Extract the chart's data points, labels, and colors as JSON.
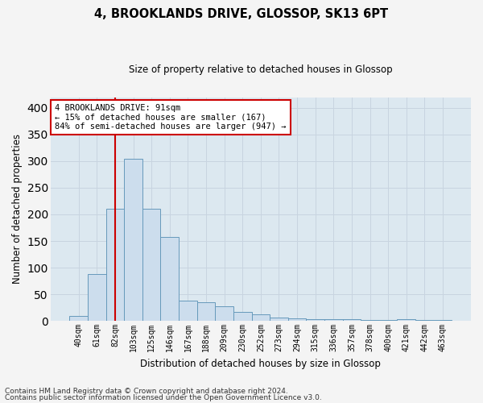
{
  "title": "4, BROOKLANDS DRIVE, GLOSSOP, SK13 6PT",
  "subtitle": "Size of property relative to detached houses in Glossop",
  "xlabel": "Distribution of detached houses by size in Glossop",
  "ylabel": "Number of detached properties",
  "footnote1": "Contains HM Land Registry data © Crown copyright and database right 2024.",
  "footnote2": "Contains public sector information licensed under the Open Government Licence v3.0.",
  "bins": [
    "40sqm",
    "61sqm",
    "82sqm",
    "103sqm",
    "125sqm",
    "146sqm",
    "167sqm",
    "188sqm",
    "209sqm",
    "230sqm",
    "252sqm",
    "273sqm",
    "294sqm",
    "315sqm",
    "336sqm",
    "357sqm",
    "378sqm",
    "400sqm",
    "421sqm",
    "442sqm",
    "463sqm"
  ],
  "values": [
    10,
    88,
    210,
    305,
    210,
    158,
    38,
    35,
    27,
    17,
    12,
    7,
    5,
    3,
    3,
    3,
    2,
    2,
    3,
    2,
    1
  ],
  "bar_color": "#ccdded",
  "bar_edge_color": "#6699bb",
  "vline_color": "#cc0000",
  "vline_x": 2.0,
  "annotation_line1": "4 BROOKLANDS DRIVE: 91sqm",
  "annotation_line2": "← 15% of detached houses are smaller (167)",
  "annotation_line3": "84% of semi-detached houses are larger (947) →",
  "annotation_box_color": "#ffffff",
  "annotation_box_edge": "#cc0000",
  "ylim": [
    0,
    420
  ],
  "yticks": [
    0,
    50,
    100,
    150,
    200,
    250,
    300,
    350,
    400
  ],
  "grid_color": "#c8d4e0",
  "fig_bg_color": "#f4f4f4",
  "plot_bg_color": "#dce8f0"
}
